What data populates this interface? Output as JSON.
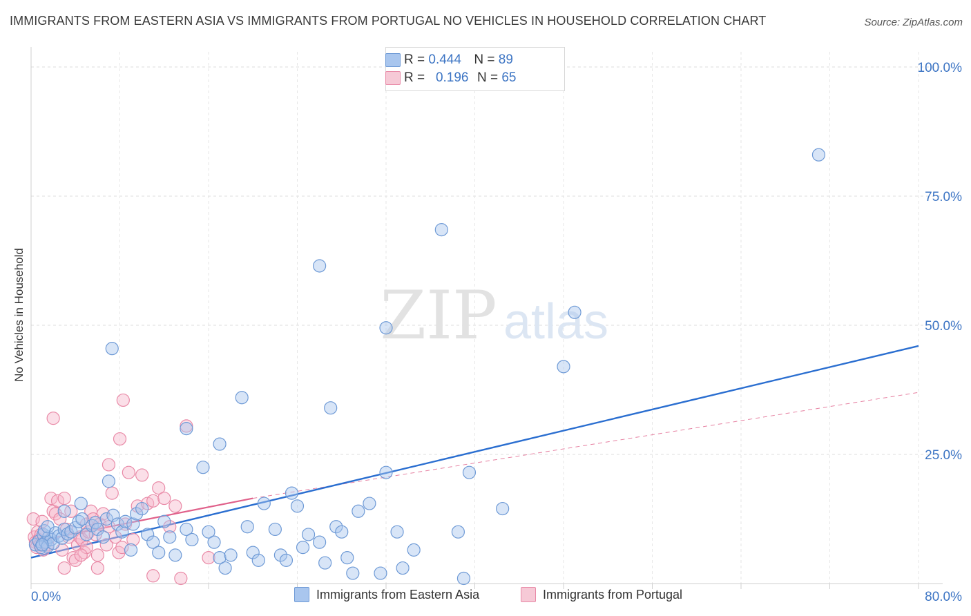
{
  "title": "IMMIGRANTS FROM EASTERN ASIA VS IMMIGRANTS FROM PORTUGAL NO VEHICLES IN HOUSEHOLD CORRELATION CHART",
  "source": "Source: ZipAtlas.com",
  "watermark": {
    "zip": "ZIP",
    "atlas": "atlas"
  },
  "legend": {
    "series1": {
      "r_label": "R =",
      "r_value": "0.444",
      "n_label": "N =",
      "n_value": "89"
    },
    "series2": {
      "r_label": "R =",
      "r_value": "0.196",
      "n_label": "N =",
      "n_value": "65"
    }
  },
  "colors": {
    "blue_fill": "#a9c6ee",
    "blue_stroke": "#6e9ad6",
    "blue_line": "#2a6ed0",
    "pink_fill": "#f6b9cc",
    "pink_stroke": "#e98aa7",
    "pink_line": "#e0608a"
  },
  "chart_data": {
    "type": "scatter",
    "title": "IMMIGRANTS FROM EASTERN ASIA VS IMMIGRANTS FROM PORTUGAL NO VEHICLES IN HOUSEHOLD CORRELATION CHART",
    "xlabel": "",
    "ylabel": "No Vehicles in Household",
    "xlim": [
      0,
      80
    ],
    "ylim": [
      0,
      100
    ],
    "x_tick_labels": [
      "0.0%",
      "80.0%"
    ],
    "y_tick_labels": [
      "100.0%",
      "75.0%",
      "50.0%",
      "25.0%"
    ],
    "y_ticks": [
      100,
      75,
      50,
      25
    ],
    "x_grid": [
      8,
      16,
      24,
      32,
      40,
      48,
      56,
      64,
      72,
      80
    ],
    "series": [
      {
        "name": "Immigrants from Eastern Asia",
        "r": 0.444,
        "n": 89,
        "trend": {
          "x": [
            0,
            80
          ],
          "y": [
            5.0,
            46.0
          ],
          "style": "solid"
        },
        "points": [
          [
            0.4,
            7.5
          ],
          [
            0.7,
            8.2
          ],
          [
            0.9,
            7.0
          ],
          [
            1.1,
            9.5
          ],
          [
            1.3,
            8.0
          ],
          [
            1.5,
            7.2
          ],
          [
            1.6,
            9.0
          ],
          [
            1.8,
            8.5
          ],
          [
            2.0,
            7.8
          ],
          [
            1.2,
            10.2
          ],
          [
            1.5,
            11.0
          ],
          [
            2.2,
            9.8
          ],
          [
            2.5,
            9.2
          ],
          [
            2.8,
            8.8
          ],
          [
            3.0,
            10.5
          ],
          [
            3.3,
            9.6
          ],
          [
            3.6,
            10.0
          ],
          [
            4.0,
            10.8
          ],
          [
            4.3,
            12.0
          ],
          [
            4.6,
            12.5
          ],
          [
            5.0,
            9.5
          ],
          [
            5.5,
            11.2
          ],
          [
            5.8,
            11.8
          ],
          [
            6.0,
            10.5
          ],
          [
            6.5,
            9.0
          ],
          [
            6.8,
            12.5
          ],
          [
            7.0,
            19.8
          ],
          [
            7.4,
            13.2
          ],
          [
            7.8,
            11.5
          ],
          [
            8.2,
            10.0
          ],
          [
            8.5,
            12.0
          ],
          [
            9.0,
            6.5
          ],
          [
            9.2,
            11.5
          ],
          [
            9.5,
            13.5
          ],
          [
            10.0,
            14.5
          ],
          [
            10.5,
            9.5
          ],
          [
            11.0,
            8.0
          ],
          [
            11.5,
            6.0
          ],
          [
            12.0,
            12.0
          ],
          [
            12.5,
            9.0
          ],
          [
            13.0,
            5.5
          ],
          [
            14.0,
            10.5
          ],
          [
            14.5,
            8.5
          ],
          [
            15.5,
            22.5
          ],
          [
            16.0,
            10.0
          ],
          [
            16.5,
            8.0
          ],
          [
            17.0,
            5.0
          ],
          [
            17.5,
            3.0
          ],
          [
            18.0,
            5.5
          ],
          [
            19.5,
            11.0
          ],
          [
            20.0,
            6.0
          ],
          [
            20.5,
            4.5
          ],
          [
            21.0,
            15.5
          ],
          [
            22.0,
            10.5
          ],
          [
            22.5,
            5.5
          ],
          [
            23.0,
            4.5
          ],
          [
            23.5,
            17.5
          ],
          [
            24.0,
            15.0
          ],
          [
            24.5,
            7.0
          ],
          [
            25.0,
            9.5
          ],
          [
            26.0,
            8.0
          ],
          [
            26.5,
            4.0
          ],
          [
            27.5,
            11.0
          ],
          [
            28.0,
            10.0
          ],
          [
            28.5,
            5.0
          ],
          [
            29.0,
            2.0
          ],
          [
            29.5,
            14.0
          ],
          [
            30.5,
            15.5
          ],
          [
            31.5,
            2.0
          ],
          [
            32.0,
            21.5
          ],
          [
            33.0,
            10.0
          ],
          [
            33.5,
            3.0
          ],
          [
            34.5,
            6.5
          ],
          [
            38.5,
            10.0
          ],
          [
            39.0,
            1.0
          ],
          [
            39.5,
            21.5
          ],
          [
            42.5,
            14.5
          ],
          [
            1.0,
            7.5
          ],
          [
            3.0,
            14.0
          ],
          [
            4.5,
            15.5
          ],
          [
            7.3,
            45.5
          ],
          [
            14.0,
            30.0
          ],
          [
            17.0,
            27.0
          ],
          [
            19.0,
            36.0
          ],
          [
            26.0,
            61.5
          ],
          [
            27.0,
            34.0
          ],
          [
            32.0,
            49.5
          ],
          [
            37.0,
            68.5
          ],
          [
            48.0,
            42.0
          ],
          [
            49.0,
            52.5
          ],
          [
            71.0,
            83.0
          ]
        ]
      },
      {
        "name": "Immigrants from Portugal",
        "r": 0.196,
        "n": 65,
        "trend": {
          "x": [
            0,
            20
          ],
          "y": [
            8.0,
            16.5
          ],
          "style": "solid",
          "extended": {
            "x": [
              20,
              80
            ],
            "y": [
              16.5,
              37.0
            ],
            "style": "dashed"
          }
        },
        "points": [
          [
            0.2,
            12.5
          ],
          [
            0.3,
            9.0
          ],
          [
            0.4,
            8.0
          ],
          [
            0.5,
            7.0
          ],
          [
            0.6,
            10.0
          ],
          [
            0.7,
            8.5
          ],
          [
            0.8,
            7.5
          ],
          [
            0.9,
            9.5
          ],
          [
            1.0,
            12.0
          ],
          [
            1.1,
            6.5
          ],
          [
            1.3,
            8.0
          ],
          [
            1.5,
            7.5
          ],
          [
            1.8,
            16.5
          ],
          [
            2.0,
            14.0
          ],
          [
            2.2,
            13.5
          ],
          [
            2.4,
            16.0
          ],
          [
            2.6,
            12.5
          ],
          [
            2.8,
            6.5
          ],
          [
            3.0,
            16.5
          ],
          [
            3.2,
            10.5
          ],
          [
            3.4,
            9.0
          ],
          [
            3.6,
            14.0
          ],
          [
            3.8,
            5.0
          ],
          [
            4.0,
            4.5
          ],
          [
            4.2,
            7.5
          ],
          [
            4.4,
            9.0
          ],
          [
            4.6,
            8.5
          ],
          [
            4.8,
            6.0
          ],
          [
            5.0,
            11.5
          ],
          [
            5.2,
            10.0
          ],
          [
            5.4,
            14.0
          ],
          [
            5.6,
            12.5
          ],
          [
            5.8,
            9.5
          ],
          [
            6.0,
            5.5
          ],
          [
            6.2,
            11.5
          ],
          [
            6.5,
            13.5
          ],
          [
            6.8,
            7.5
          ],
          [
            7.0,
            11.0
          ],
          [
            7.3,
            17.5
          ],
          [
            7.6,
            9.0
          ],
          [
            7.9,
            6.0
          ],
          [
            8.2,
            7.0
          ],
          [
            8.5,
            11.5
          ],
          [
            8.8,
            21.5
          ],
          [
            9.2,
            8.5
          ],
          [
            9.6,
            15.0
          ],
          [
            10.0,
            21.0
          ],
          [
            10.5,
            15.5
          ],
          [
            11.0,
            16.0
          ],
          [
            11.5,
            18.5
          ],
          [
            12.0,
            16.5
          ],
          [
            12.5,
            11.0
          ],
          [
            13.0,
            15.0
          ],
          [
            14.0,
            30.5
          ],
          [
            16.0,
            5.0
          ],
          [
            2.0,
            32.0
          ],
          [
            5.0,
            7.0
          ],
          [
            6.0,
            3.0
          ],
          [
            7.0,
            23.0
          ],
          [
            8.0,
            28.0
          ],
          [
            8.3,
            35.5
          ],
          [
            11.0,
            1.5
          ],
          [
            13.5,
            1.0
          ],
          [
            3.0,
            3.0
          ],
          [
            4.5,
            5.5
          ]
        ]
      }
    ]
  },
  "bottom_legend": {
    "series1_label": "Immigrants from Eastern Asia",
    "series2_label": "Immigrants from Portugal"
  }
}
